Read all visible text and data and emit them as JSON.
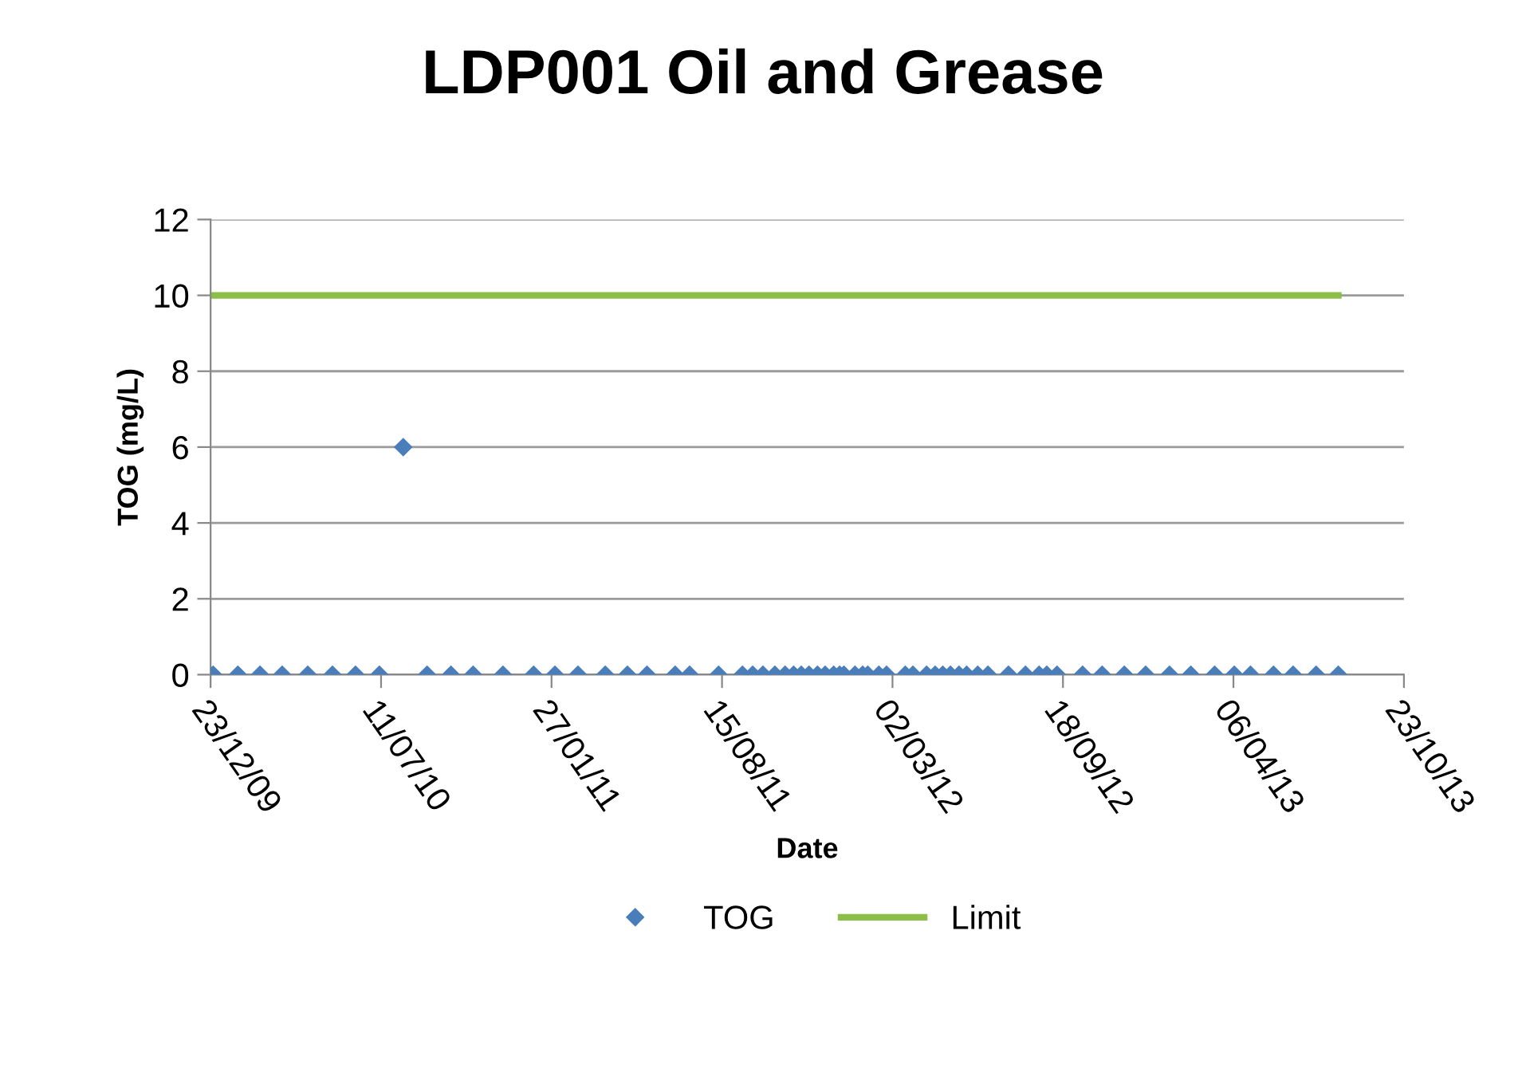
{
  "chart_data": {
    "type": "scatter",
    "title": "LDP001 Oil and Grease",
    "xlabel": "Date",
    "ylabel": "TOG (mg/L)",
    "xlim": [
      "2009-12-23",
      "2013-10-23"
    ],
    "xticks": [
      {
        "value": "2009-12-23",
        "label": "23/12/09"
      },
      {
        "value": "2010-07-11",
        "label": "11/07/10"
      },
      {
        "value": "2011-01-27",
        "label": "27/01/11"
      },
      {
        "value": "2011-08-15",
        "label": "15/08/11"
      },
      {
        "value": "2012-03-02",
        "label": "02/03/12"
      },
      {
        "value": "2012-09-18",
        "label": "18/09/12"
      },
      {
        "value": "2013-04-06",
        "label": "06/04/13"
      },
      {
        "value": "2013-10-23",
        "label": "23/10/13"
      }
    ],
    "ylim": [
      0,
      12
    ],
    "yticks": [
      0,
      2,
      4,
      6,
      8,
      10,
      12
    ],
    "grid": "y",
    "legend": "bottom",
    "series": [
      {
        "name": "TOG",
        "marker": "diamond",
        "color": "#4a7ebb",
        "x": [
          "2009-12-26",
          "2010-01-24",
          "2010-02-19",
          "2010-03-17",
          "2010-04-16",
          "2010-05-15",
          "2010-06-11",
          "2010-07-09",
          "2010-08-06",
          "2010-09-03",
          "2010-10-01",
          "2010-10-27",
          "2010-12-01",
          "2011-01-06",
          "2011-01-31",
          "2011-02-27",
          "2011-03-31",
          "2011-04-26",
          "2011-05-19",
          "2011-06-21",
          "2011-07-08",
          "2011-08-11",
          "2011-09-08",
          "2011-09-20",
          "2011-10-02",
          "2011-10-16",
          "2011-10-28",
          "2011-11-07",
          "2011-11-16",
          "2011-11-25",
          "2011-12-05",
          "2011-12-14",
          "2011-12-24",
          "2011-12-31",
          "2012-01-05",
          "2012-01-18",
          "2012-01-27",
          "2012-02-02",
          "2012-02-15",
          "2012-02-24",
          "2012-03-17",
          "2012-03-26",
          "2012-04-11",
          "2012-04-21",
          "2012-04-30",
          "2012-05-09",
          "2012-05-19",
          "2012-05-28",
          "2012-06-10",
          "2012-06-22",
          "2012-07-16",
          "2012-08-05",
          "2012-08-21",
          "2012-08-30",
          "2012-09-11",
          "2012-10-11",
          "2012-11-03",
          "2012-11-29",
          "2012-12-24",
          "2013-01-21",
          "2013-02-15",
          "2013-03-15",
          "2013-04-07",
          "2013-04-26",
          "2013-05-23",
          "2013-06-15",
          "2013-07-12",
          "2013-08-07"
        ],
        "values": [
          0,
          0,
          0,
          0,
          0,
          0,
          0,
          0,
          6,
          0,
          0,
          0,
          0,
          0,
          0,
          0,
          0,
          0,
          0,
          0,
          0,
          0,
          0,
          0,
          0,
          0,
          0,
          0,
          0,
          0,
          0,
          0,
          0,
          0,
          0,
          0,
          0,
          0,
          0,
          0,
          0,
          0,
          0,
          0,
          0,
          0,
          0,
          0,
          0,
          0,
          0,
          0,
          0,
          0,
          0,
          0,
          0,
          0,
          0,
          0,
          0,
          0,
          0,
          0,
          0,
          0,
          0,
          0
        ]
      },
      {
        "name": "Limit",
        "type": "line",
        "marker": "none",
        "line_style": "solid",
        "color": "#8cbf48",
        "x": [
          "2009-12-23",
          "2013-08-07"
        ],
        "values": [
          10,
          10
        ]
      }
    ]
  }
}
